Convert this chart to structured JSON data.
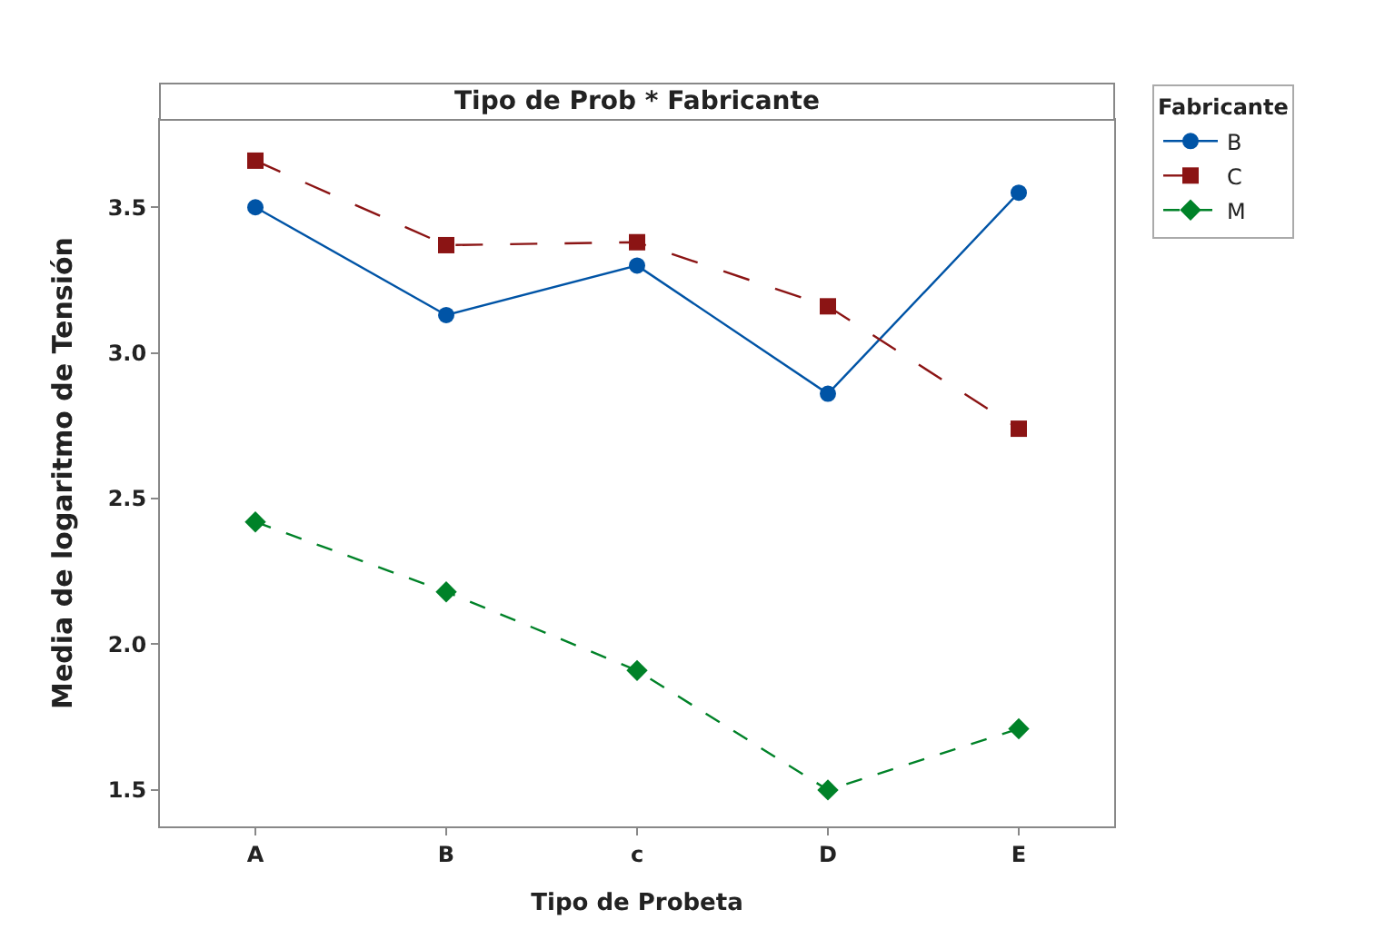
{
  "chart_data": {
    "type": "line",
    "title": "Tipo de Prob * Fabricante",
    "xlabel": "Tipo de Probeta",
    "ylabel": "Media de logaritmo de Tensión",
    "legend_title": "Fabricante",
    "categories": [
      "A",
      "B",
      "c",
      "D",
      "E"
    ],
    "series": [
      {
        "name": "B",
        "color": "#0054a6",
        "values": [
          3.5,
          3.13,
          3.3,
          2.86,
          3.55
        ],
        "marker": "circle",
        "line_style": "solid"
      },
      {
        "name": "C",
        "color": "#8b1414",
        "values": [
          3.66,
          3.37,
          3.38,
          3.16,
          2.74
        ],
        "marker": "square",
        "line_style": "dashed"
      },
      {
        "name": "M",
        "color": "#008228",
        "values": [
          2.42,
          2.18,
          1.91,
          1.5,
          1.71
        ],
        "marker": "diamond",
        "line_style": "dotted"
      }
    ],
    "ylim": [
      1.375,
      3.8
    ],
    "yticks": [
      1.5,
      {
        "value": 2,
        "label": "2.0"
      },
      2.5,
      {
        "value": 3,
        "label": "3.0"
      },
      3.5
    ],
    "legend": "top right"
  }
}
